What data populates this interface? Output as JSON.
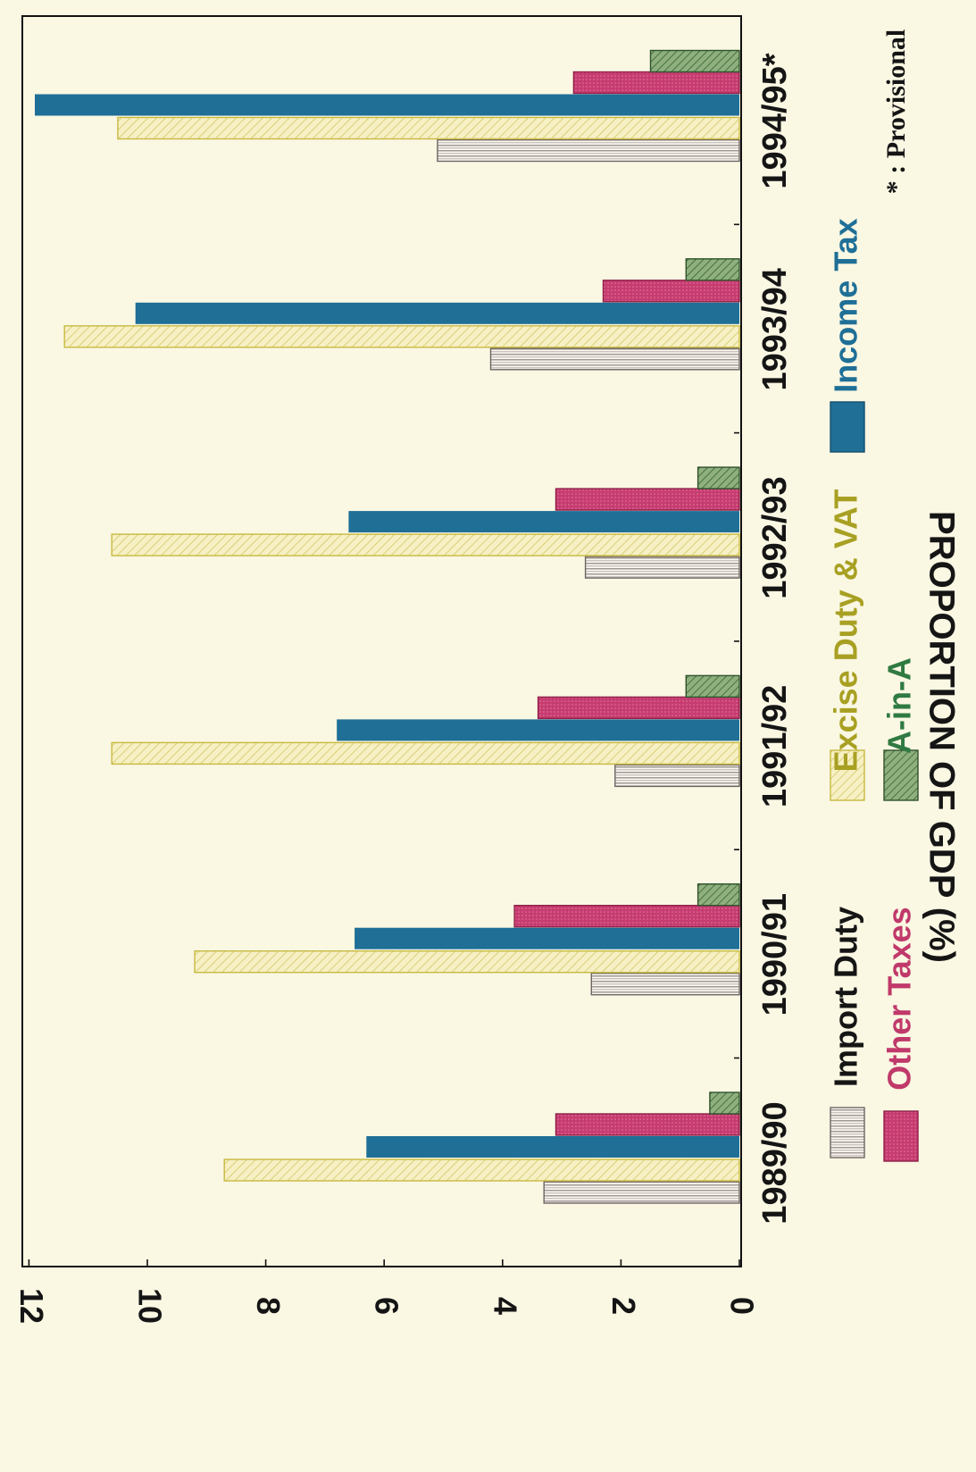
{
  "chart_data": {
    "type": "bar",
    "ylabel": "PROPORTION OF GDP (%)",
    "ylim": [
      0,
      12
    ],
    "yticks": [
      "0",
      "2",
      "4",
      "6",
      "8",
      "10",
      "12"
    ],
    "categories": [
      "1989/90",
      "1990/91",
      "1991/92",
      "1992/93",
      "1993/94",
      "1994/95*"
    ],
    "series": [
      {
        "name": "Import Duty",
        "values": [
          3.3,
          2.5,
          2.1,
          2.6,
          4.2,
          5.1
        ]
      },
      {
        "name": "Excise Duty & VAT",
        "values": [
          8.7,
          9.2,
          10.6,
          10.6,
          11.4,
          10.5
        ]
      },
      {
        "name": "Income Tax",
        "values": [
          6.3,
          6.5,
          6.8,
          6.6,
          10.2,
          11.9
        ]
      },
      {
        "name": "Other Taxes",
        "values": [
          3.1,
          3.8,
          3.4,
          3.1,
          2.3,
          2.8
        ]
      },
      {
        "name": "A-in-A",
        "values": [
          0.5,
          0.7,
          0.9,
          0.7,
          0.9,
          1.5
        ]
      }
    ],
    "colors": {
      "Import Duty": "#c9c0c0",
      "Excise Duty & VAT": "#dccf6a",
      "Income Tax": "#1f6f97",
      "Other Taxes": "#c0396a",
      "A-in-A": "#6f9660"
    },
    "legend_position": "bottom",
    "footnote": "* : Provisional",
    "grid": false
  }
}
